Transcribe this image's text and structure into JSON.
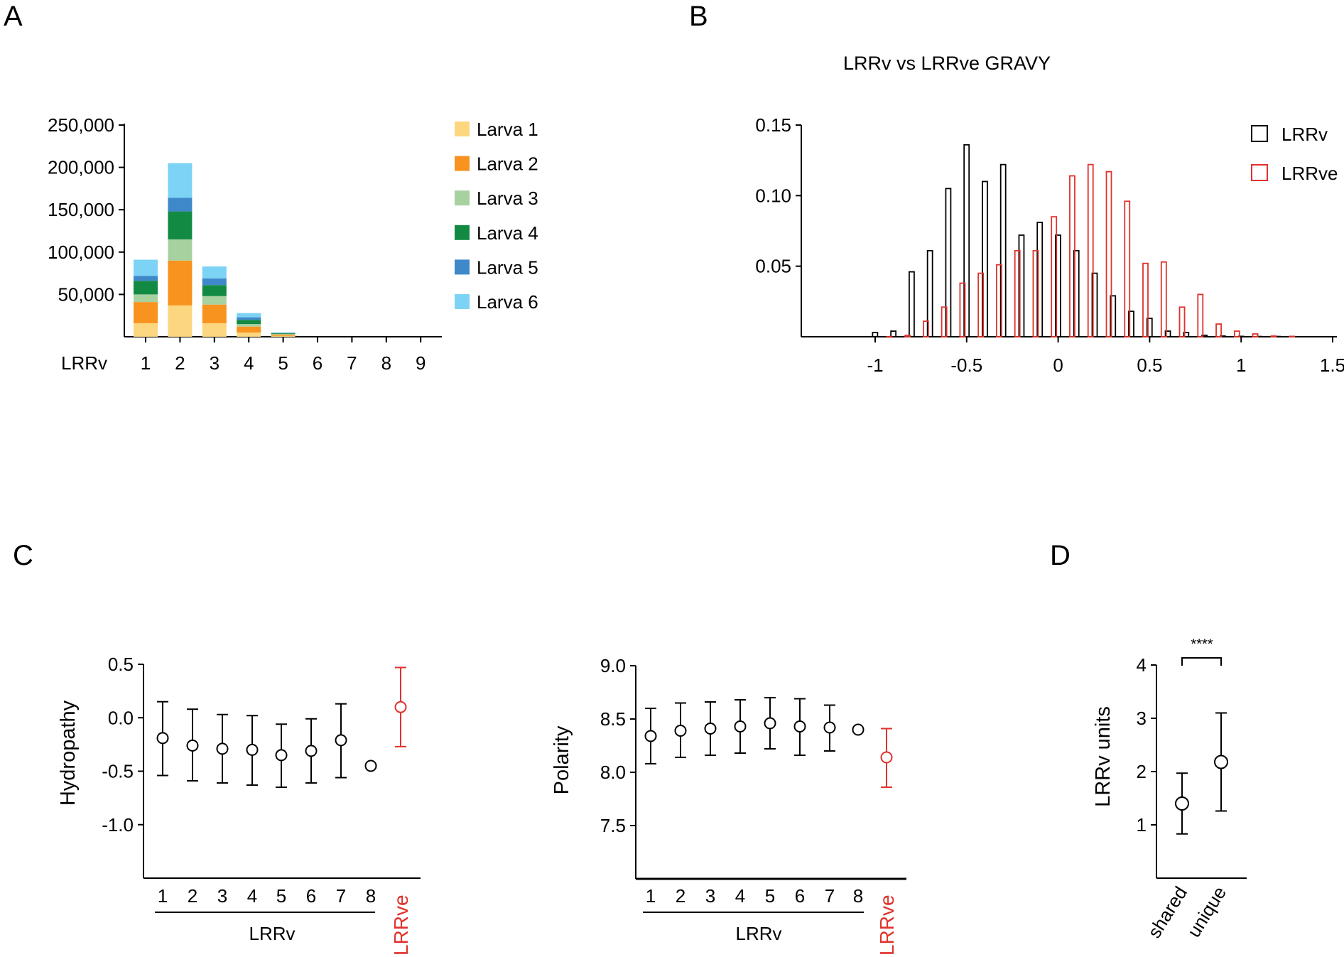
{
  "panel_labels": {
    "a": "A",
    "b": "B",
    "c": "C",
    "d": "D"
  },
  "colors": {
    "black": "#000000",
    "red": "#e0322c"
  },
  "chart_data": [
    {
      "id": "A",
      "type": "bar",
      "stacked": true,
      "title": "",
      "xlabel": "LRRv",
      "ylabel": "",
      "categories": [
        "1",
        "2",
        "3",
        "4",
        "5",
        "6",
        "7",
        "8",
        "9"
      ],
      "ylim": [
        0,
        250000
      ],
      "yticks": [
        50000,
        100000,
        150000,
        200000,
        250000
      ],
      "ytick_labels": [
        "50,000",
        "100,000",
        "150,000",
        "200,000",
        "250,000"
      ],
      "legend_position": "right",
      "series": [
        {
          "name": "Larva 1",
          "color": "#fdd680",
          "values": [
            16000,
            37000,
            16000,
            5000,
            1200,
            0,
            0,
            0,
            0
          ]
        },
        {
          "name": "Larva 2",
          "color": "#f7931e",
          "values": [
            25000,
            53000,
            22000,
            7000,
            1500,
            0,
            0,
            0,
            0
          ]
        },
        {
          "name": "Larva 3",
          "color": "#a8d1a0",
          "values": [
            9000,
            25000,
            10000,
            3000,
            500,
            0,
            0,
            0,
            0
          ]
        },
        {
          "name": "Larva 4",
          "color": "#138a43",
          "values": [
            16000,
            33000,
            13000,
            5000,
            900,
            0,
            0,
            0,
            0
          ]
        },
        {
          "name": "Larva 5",
          "color": "#3f88c9",
          "values": [
            6000,
            16000,
            8000,
            3000,
            400,
            0,
            0,
            0,
            0
          ]
        },
        {
          "name": "Larva 6",
          "color": "#7dd3f5",
          "values": [
            19000,
            41000,
            14000,
            5000,
            600,
            0,
            0,
            0,
            0
          ]
        }
      ]
    },
    {
      "id": "B",
      "type": "bar",
      "title": "LRRv vs LRRve GRAVY",
      "xlabel": "",
      "ylabel": "",
      "xlim": [
        -1.4,
        1.5
      ],
      "ylim": [
        0,
        0.15
      ],
      "xticks": [
        -1,
        -0.5,
        0,
        0.5,
        1,
        1.5
      ],
      "xtick_labels": [
        "-1",
        "-0.5",
        "0",
        "0.5",
        "1",
        "1.5"
      ],
      "yticks": [
        0.05,
        0.1,
        0.15
      ],
      "ytick_labels": [
        "0.05",
        "0.10",
        "0.15"
      ],
      "legend_position": "top-right",
      "series": [
        {
          "name": "LRRv",
          "color": "#000000",
          "x": [
            -0.95,
            -0.85,
            -0.75,
            -0.65,
            -0.55,
            -0.45,
            -0.35,
            -0.25,
            -0.15,
            -0.05,
            0.05,
            0.15,
            0.25,
            0.35,
            0.45,
            0.55,
            0.65,
            0.75,
            0.85,
            0.95,
            1.05,
            1.15,
            1.25
          ],
          "values": [
            0.003,
            0.004,
            0.046,
            0.061,
            0.105,
            0.136,
            0.11,
            0.122,
            0.072,
            0.081,
            0.072,
            0.061,
            0.045,
            0.029,
            0.018,
            0.013,
            0.004,
            0.003,
            0.001,
            0.0005,
            0.0003,
            0.0002,
            0.0002
          ]
        },
        {
          "name": "LRRve",
          "color": "#e0322c",
          "x": [
            -0.95,
            -0.85,
            -0.75,
            -0.65,
            -0.55,
            -0.45,
            -0.35,
            -0.25,
            -0.15,
            -0.05,
            0.05,
            0.15,
            0.25,
            0.35,
            0.45,
            0.55,
            0.65,
            0.75,
            0.85,
            0.95,
            1.05,
            1.15,
            1.25
          ],
          "values": [
            0.0,
            0.001,
            0.011,
            0.021,
            0.038,
            0.045,
            0.051,
            0.061,
            0.061,
            0.085,
            0.114,
            0.122,
            0.117,
            0.096,
            0.052,
            0.053,
            0.021,
            0.03,
            0.009,
            0.004,
            0.002,
            0.0005,
            0.0003
          ]
        }
      ]
    },
    {
      "id": "C1",
      "type": "scatter",
      "title": "",
      "ylabel": "Hydropathy",
      "xlabel": "LRRv",
      "categories": [
        "1",
        "2",
        "3",
        "4",
        "5",
        "6",
        "7",
        "8"
      ],
      "extra_category": "LRRve",
      "ylim": [
        -1.5,
        0.5
      ],
      "yticks": [
        0.5,
        0.0,
        -0.5,
        -1.0
      ],
      "ytick_labels": [
        "0.5",
        "0.0",
        "-0.5",
        "-1.0"
      ],
      "points": [
        {
          "x": "1",
          "mean": -0.19,
          "low": -0.54,
          "high": 0.15,
          "color": "#000000"
        },
        {
          "x": "2",
          "mean": -0.26,
          "low": -0.59,
          "high": 0.08,
          "color": "#000000"
        },
        {
          "x": "3",
          "mean": -0.29,
          "low": -0.61,
          "high": 0.03,
          "color": "#000000"
        },
        {
          "x": "4",
          "mean": -0.3,
          "low": -0.63,
          "high": 0.02,
          "color": "#000000"
        },
        {
          "x": "5",
          "mean": -0.35,
          "low": -0.65,
          "high": -0.06,
          "color": "#000000"
        },
        {
          "x": "6",
          "mean": -0.31,
          "low": -0.61,
          "high": -0.01,
          "color": "#000000"
        },
        {
          "x": "7",
          "mean": -0.21,
          "low": -0.56,
          "high": 0.13,
          "color": "#000000"
        },
        {
          "x": "8",
          "mean": -0.45,
          "low": null,
          "high": null,
          "color": "#000000"
        },
        {
          "x": "LRRve",
          "mean": 0.1,
          "low": -0.27,
          "high": 0.47,
          "color": "#e0322c"
        }
      ]
    },
    {
      "id": "C2",
      "type": "scatter",
      "title": "",
      "ylabel": "Polarity",
      "xlabel": "LRRv",
      "categories": [
        "1",
        "2",
        "3",
        "4",
        "5",
        "6",
        "7",
        "8"
      ],
      "extra_category": "LRRve",
      "ylim": [
        7.0,
        9.0
      ],
      "yticks": [
        9.0,
        8.5,
        8.0,
        7.5
      ],
      "ytick_labels": [
        "9.0",
        "8.5",
        "8.0",
        "7.5"
      ],
      "points": [
        {
          "x": "1",
          "mean": 8.34,
          "low": 8.08,
          "high": 8.6,
          "color": "#000000"
        },
        {
          "x": "2",
          "mean": 8.39,
          "low": 8.14,
          "high": 8.65,
          "color": "#000000"
        },
        {
          "x": "3",
          "mean": 8.41,
          "low": 8.16,
          "high": 8.66,
          "color": "#000000"
        },
        {
          "x": "4",
          "mean": 8.43,
          "low": 8.18,
          "high": 8.68,
          "color": "#000000"
        },
        {
          "x": "5",
          "mean": 8.46,
          "low": 8.22,
          "high": 8.7,
          "color": "#000000"
        },
        {
          "x": "6",
          "mean": 8.43,
          "low": 8.16,
          "high": 8.69,
          "color": "#000000"
        },
        {
          "x": "7",
          "mean": 8.42,
          "low": 8.2,
          "high": 8.63,
          "color": "#000000"
        },
        {
          "x": "8",
          "mean": 8.4,
          "low": null,
          "high": null,
          "color": "#000000"
        },
        {
          "x": "LRRve",
          "mean": 8.14,
          "low": 7.86,
          "high": 8.41,
          "color": "#e0322c"
        }
      ]
    },
    {
      "id": "D",
      "type": "scatter",
      "title": "",
      "ylabel": "LRRv units",
      "xlabel": "",
      "categories": [
        "shared",
        "unique"
      ],
      "ylim": [
        0,
        4
      ],
      "yticks": [
        1,
        2,
        3,
        4
      ],
      "ytick_labels": [
        "1",
        "2",
        "3",
        "4"
      ],
      "significance": "****",
      "points": [
        {
          "x": "shared",
          "mean": 1.4,
          "low": 0.83,
          "high": 1.97,
          "color": "#000000"
        },
        {
          "x": "unique",
          "mean": 2.18,
          "low": 1.26,
          "high": 3.1,
          "color": "#000000"
        }
      ]
    }
  ]
}
